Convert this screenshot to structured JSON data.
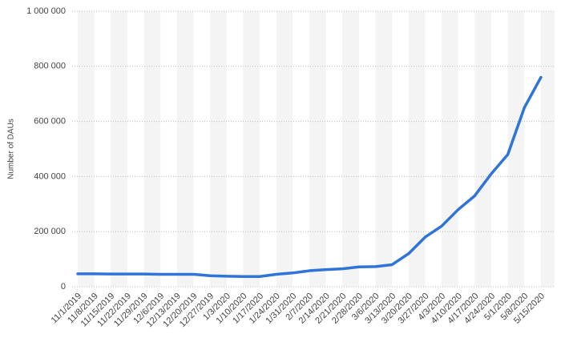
{
  "chart_data": {
    "type": "line",
    "y_axis_label": "Number of DAUs",
    "categories": [
      "11/1/2019",
      "11/8/2019",
      "11/15/2019",
      "11/22/2019",
      "11/29/2019",
      "12/6/2019",
      "12/13/2019",
      "12/20/2019",
      "12/27/2019",
      "1/3/2020",
      "1/10/2020",
      "1/17/2020",
      "1/24/2020",
      "1/31/2020",
      "2/7/2020",
      "2/14/2020",
      "2/21/2020",
      "2/28/2020",
      "3/6/2020",
      "3/13/2020",
      "3/20/2020",
      "3/27/2020",
      "4/3/2020",
      "4/10/2020",
      "4/17/2020",
      "4/24/2020",
      "5/1/2020",
      "5/8/2020",
      "5/15/2020"
    ],
    "series": [
      {
        "color": "#2f74d8",
        "values": [
          47000,
          47000,
          46000,
          46000,
          46000,
          45000,
          45000,
          45000,
          40000,
          38000,
          37000,
          37000,
          45000,
          50000,
          58000,
          62000,
          65000,
          72000,
          73000,
          80000,
          120000,
          180000,
          220000,
          280000,
          330000,
          410000,
          480000,
          650000,
          760000
        ]
      }
    ],
    "ylim": [
      0,
      1000000
    ],
    "yticks": [
      0,
      {
        "value": 200000,
        "label": "200 000"
      },
      {
        "value": 400000,
        "label": "400 000"
      },
      {
        "value": 600000,
        "label": "600 000"
      },
      {
        "value": 800000,
        "label": "800 000"
      },
      {
        "value": 1000000,
        "label": "1 000 000"
      }
    ],
    "grid": true
  }
}
